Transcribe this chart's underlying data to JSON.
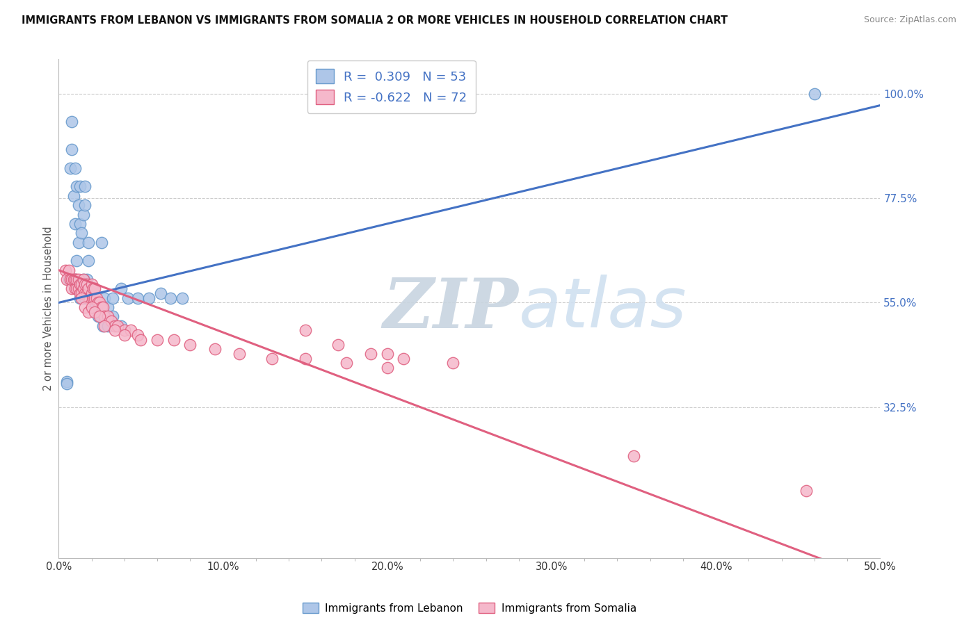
{
  "title": "IMMIGRANTS FROM LEBANON VS IMMIGRANTS FROM SOMALIA 2 OR MORE VEHICLES IN HOUSEHOLD CORRELATION CHART",
  "source": "Source: ZipAtlas.com",
  "ylabel": "2 or more Vehicles in Household",
  "xlim": [
    0.0,
    0.5
  ],
  "ylim": [
    0.0,
    1.075
  ],
  "xtick_labels": [
    "0.0%",
    "",
    "",
    "",
    "",
    "10.0%",
    "",
    "",
    "",
    "",
    "20.0%",
    "",
    "",
    "",
    "",
    "30.0%",
    "",
    "",
    "",
    "",
    "40.0%",
    "",
    "",
    "",
    "",
    "50.0%"
  ],
  "xtick_vals": [
    0.0,
    0.02,
    0.04,
    0.06,
    0.08,
    0.1,
    0.12,
    0.14,
    0.16,
    0.18,
    0.2,
    0.22,
    0.24,
    0.26,
    0.28,
    0.3,
    0.32,
    0.34,
    0.36,
    0.38,
    0.4,
    0.42,
    0.44,
    0.46,
    0.48,
    0.5
  ],
  "ytick_labels": [
    "32.5%",
    "55.0%",
    "77.5%",
    "100.0%"
  ],
  "ytick_vals": [
    0.325,
    0.55,
    0.775,
    1.0
  ],
  "lebanon_color": "#aec6e8",
  "lebanon_edge": "#6699cc",
  "somalia_color": "#f5b8cb",
  "somalia_edge": "#e06080",
  "blue_line_color": "#4472c4",
  "pink_line_color": "#e06080",
  "legend_R_lebanon": "R =  0.309",
  "legend_N_lebanon": "N = 53",
  "legend_R_somalia": "R = -0.622",
  "legend_N_somalia": "N = 72",
  "watermark_color": "#ccdde8",
  "background_color": "#ffffff",
  "grid_color": "#cccccc",
  "blue_line": [
    0.0,
    0.55,
    0.5,
    0.975
  ],
  "pink_line": [
    0.0,
    0.62,
    0.5,
    -0.05
  ],
  "lebanon_x": [
    0.005,
    0.006,
    0.007,
    0.008,
    0.008,
    0.009,
    0.01,
    0.01,
    0.011,
    0.012,
    0.012,
    0.013,
    0.013,
    0.014,
    0.015,
    0.016,
    0.016,
    0.017,
    0.018,
    0.018,
    0.019,
    0.02,
    0.021,
    0.022,
    0.023,
    0.024,
    0.025,
    0.026,
    0.028,
    0.03,
    0.033,
    0.038,
    0.01,
    0.011,
    0.013,
    0.015,
    0.016,
    0.017,
    0.02,
    0.022,
    0.024,
    0.027,
    0.03,
    0.033,
    0.038,
    0.042,
    0.048,
    0.055,
    0.062,
    0.068,
    0.075,
    0.46,
    0.005
  ],
  "lebanon_y": [
    0.38,
    0.6,
    0.84,
    0.88,
    0.94,
    0.78,
    0.84,
    0.72,
    0.8,
    0.68,
    0.76,
    0.72,
    0.8,
    0.7,
    0.74,
    0.76,
    0.8,
    0.6,
    0.64,
    0.68,
    0.56,
    0.58,
    0.56,
    0.55,
    0.54,
    0.53,
    0.52,
    0.68,
    0.56,
    0.54,
    0.52,
    0.5,
    0.6,
    0.64,
    0.56,
    0.6,
    0.56,
    0.58,
    0.56,
    0.54,
    0.52,
    0.5,
    0.5,
    0.56,
    0.58,
    0.56,
    0.56,
    0.56,
    0.57,
    0.56,
    0.56,
    1.0,
    0.375
  ],
  "somalia_x": [
    0.004,
    0.005,
    0.006,
    0.007,
    0.008,
    0.008,
    0.009,
    0.01,
    0.01,
    0.011,
    0.011,
    0.012,
    0.012,
    0.013,
    0.013,
    0.014,
    0.014,
    0.015,
    0.015,
    0.016,
    0.016,
    0.017,
    0.017,
    0.018,
    0.018,
    0.019,
    0.02,
    0.02,
    0.021,
    0.021,
    0.022,
    0.022,
    0.023,
    0.024,
    0.025,
    0.026,
    0.027,
    0.028,
    0.03,
    0.032,
    0.034,
    0.036,
    0.04,
    0.044,
    0.048,
    0.014,
    0.016,
    0.018,
    0.02,
    0.022,
    0.025,
    0.028,
    0.034,
    0.04,
    0.05,
    0.06,
    0.07,
    0.08,
    0.095,
    0.11,
    0.13,
    0.15,
    0.175,
    0.19,
    0.21,
    0.24,
    0.15,
    0.17,
    0.2,
    0.2,
    0.35,
    0.455
  ],
  "somalia_y": [
    0.62,
    0.6,
    0.62,
    0.6,
    0.58,
    0.6,
    0.6,
    0.58,
    0.6,
    0.58,
    0.6,
    0.58,
    0.6,
    0.57,
    0.59,
    0.57,
    0.59,
    0.58,
    0.6,
    0.57,
    0.59,
    0.57,
    0.59,
    0.56,
    0.58,
    0.56,
    0.57,
    0.59,
    0.56,
    0.58,
    0.56,
    0.58,
    0.56,
    0.55,
    0.55,
    0.54,
    0.54,
    0.52,
    0.52,
    0.51,
    0.5,
    0.5,
    0.49,
    0.49,
    0.48,
    0.56,
    0.54,
    0.53,
    0.54,
    0.53,
    0.52,
    0.5,
    0.49,
    0.48,
    0.47,
    0.47,
    0.47,
    0.46,
    0.45,
    0.44,
    0.43,
    0.43,
    0.42,
    0.44,
    0.43,
    0.42,
    0.49,
    0.46,
    0.44,
    0.41,
    0.22,
    0.145
  ]
}
